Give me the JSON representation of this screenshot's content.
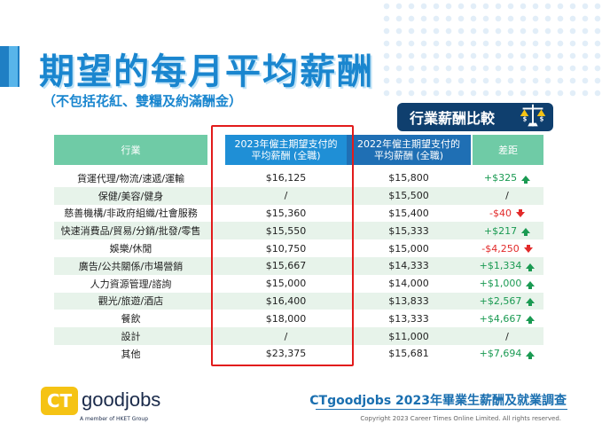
{
  "header": {
    "title": "期望的每月平均薪酬",
    "subtitle": "（不包括花紅、雙糧及約滿酬金）",
    "badge": "行業薪酬比較"
  },
  "table": {
    "columns": [
      "行業",
      "2023年僱主期望支付的\n平均薪酬 (全職)",
      "2022年僱主期望支付的\n平均薪酬 (全職)",
      "差距"
    ],
    "rows": [
      {
        "industry": "貨運代理/物流/速遞/運輸",
        "y2023": "$16,125",
        "y2022": "$15,800",
        "diff": "+$325",
        "trend": "up"
      },
      {
        "industry": "保健/美容/健身",
        "y2023": "/",
        "y2022": "$15,500",
        "diff": "/",
        "trend": "none"
      },
      {
        "industry": "慈善機構/非政府組織/社會服務",
        "y2023": "$15,360",
        "y2022": "$15,400",
        "diff": "-$40",
        "trend": "down"
      },
      {
        "industry": "快速消費品/貿易/分銷/批發/零售",
        "y2023": "$15,550",
        "y2022": "$15,333",
        "diff": "+$217",
        "trend": "up"
      },
      {
        "industry": "娛樂/休閒",
        "y2023": "$10,750",
        "y2022": "$15,000",
        "diff": "-$4,250",
        "trend": "down"
      },
      {
        "industry": "廣告/公共關係/市場營銷",
        "y2023": "$15,667",
        "y2022": "$14,333",
        "diff": "+$1,334",
        "trend": "up"
      },
      {
        "industry": "人力資源管理/諮詢",
        "y2023": "$15,000",
        "y2022": "$14,000",
        "diff": "+$1,000",
        "trend": "up"
      },
      {
        "industry": "觀光/旅遊/酒店",
        "y2023": "$16,400",
        "y2022": "$13,833",
        "diff": "+$2,567",
        "trend": "up"
      },
      {
        "industry": "餐飲",
        "y2023": "$18,000",
        "y2022": "$13,333",
        "diff": "+$4,667",
        "trend": "up"
      },
      {
        "industry": "設計",
        "y2023": "/",
        "y2022": "$11,000",
        "diff": "/",
        "trend": "none"
      },
      {
        "industry": "其他",
        "y2023": "$23,375",
        "y2022": "$15,681",
        "diff": "+$7,694",
        "trend": "up"
      }
    ]
  },
  "footer": {
    "logo_ct": "CT",
    "logo_text": "goodjobs",
    "logo_member": "A member of HKET Group",
    "survey_title": "CTgoodjobs 2023年畢業生薪酬及就業調查",
    "copyright": "Copyright 2023 Career Times Online Limited. All rights reserved."
  },
  "colors": {
    "title": "#1a86cf",
    "header_green": "#6fcba6",
    "header_blue": "#1f8fd6",
    "positive": "#1a9a52",
    "negative": "#e22a2a",
    "highlight": "#e21b1b"
  }
}
